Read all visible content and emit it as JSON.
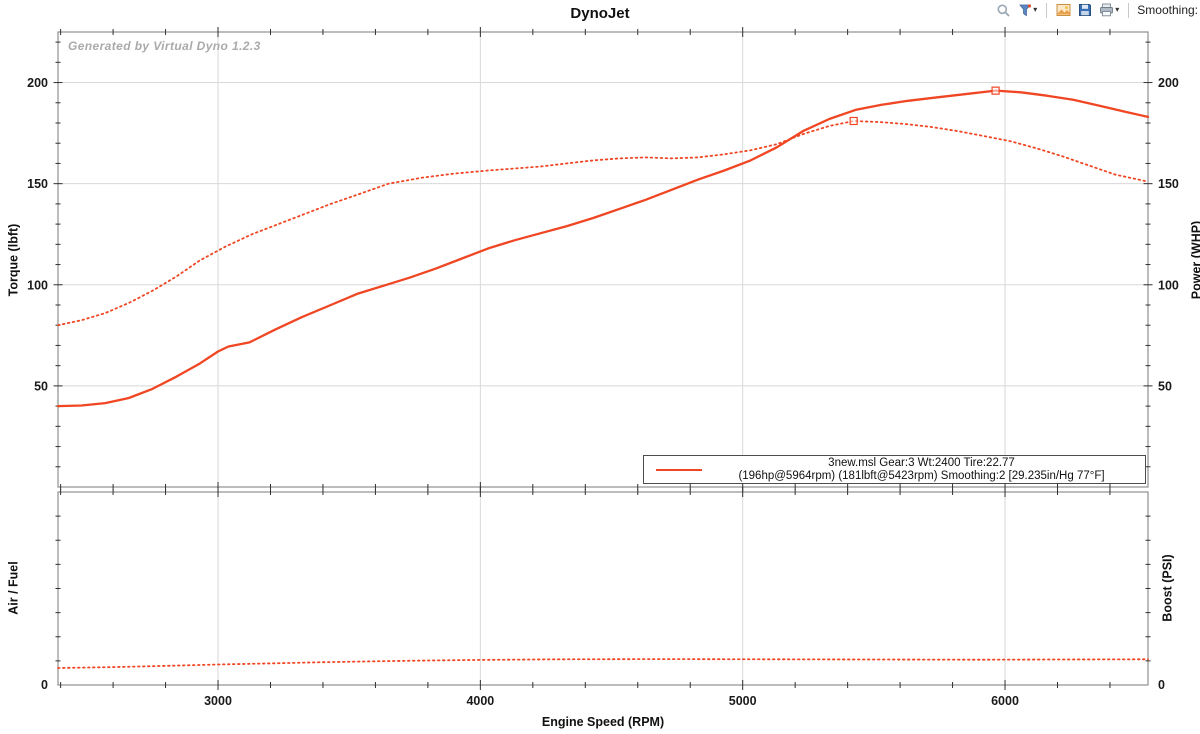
{
  "window": {
    "title": "DynoJet"
  },
  "toolbar": {
    "smoothing_label": "Smoothing:",
    "buttons": [
      "zoom",
      "filter-options",
      "copy-image",
      "save",
      "print"
    ]
  },
  "watermark": "Generated by Virtual Dyno 1.2.3",
  "axes": {
    "top_left_label": "Torque (lbft)",
    "top_right_label": "Power (WHP)",
    "bottom_left_label": "Air / Fuel",
    "bottom_right_label": "Boost (PSI)",
    "x_label": "Engine Speed (RPM)",
    "bottom_zero_label": "0"
  },
  "legend": {
    "line1": "3new.msl Gear:3 Wt:2400 Tire:22.77",
    "line2": "(196hp@5964rpm) (181lbft@5423rpm) Smoothing:2 [29.235in/Hg 77°F]"
  },
  "colors": {
    "curve": "#f04623",
    "grid": "#d8d8d8",
    "border": "#8f8f8f",
    "tick": "#2f2f2f",
    "text": "#1a1a1a",
    "watermark": "#aaaaaa",
    "legend_border": "#4d4d4d"
  },
  "chart_data": [
    {
      "type": "line",
      "panel": "main",
      "title": "DynoJet",
      "xlabel": "Engine Speed (RPM)",
      "ylabel_left": "Torque (lbft)",
      "ylabel_right": "Power (WHP)",
      "xlim": [
        2390,
        6545
      ],
      "ylim": [
        0,
        225
      ],
      "xticks": [
        3000,
        4000,
        5000,
        6000
      ],
      "yticks": [
        50,
        100,
        150,
        200
      ],
      "x_minor_step": 200,
      "y_minor_step": 10,
      "grid": true,
      "legend_position": "bottom-right",
      "series": [
        {
          "name": "power_whp",
          "style": "solid",
          "peak": {
            "label": "196hp@5964rpm",
            "x": 5964,
            "y": 196
          },
          "points": [
            [
              2390,
              40
            ],
            [
              2480,
              40.3
            ],
            [
              2570,
              41.5
            ],
            [
              2660,
              44
            ],
            [
              2750,
              48.5
            ],
            [
              2840,
              54.5
            ],
            [
              2930,
              61
            ],
            [
              3000,
              67
            ],
            [
              3040,
              69.5
            ],
            [
              3120,
              71.5
            ],
            [
              3220,
              78
            ],
            [
              3320,
              84
            ],
            [
              3430,
              90
            ],
            [
              3530,
              95.5
            ],
            [
              3630,
              99.5
            ],
            [
              3730,
              103.5
            ],
            [
              3830,
              108
            ],
            [
              3930,
              113
            ],
            [
              4030,
              118
            ],
            [
              4130,
              122
            ],
            [
              4230,
              125.5
            ],
            [
              4330,
              129
            ],
            [
              4430,
              133
            ],
            [
              4530,
              137.5
            ],
            [
              4630,
              142
            ],
            [
              4730,
              147
            ],
            [
              4830,
              152
            ],
            [
              4930,
              156.5
            ],
            [
              5030,
              161.5
            ],
            [
              5130,
              168
            ],
            [
              5230,
              176
            ],
            [
              5330,
              182
            ],
            [
              5430,
              186.5
            ],
            [
              5530,
              189
            ],
            [
              5630,
              191
            ],
            [
              5730,
              192.5
            ],
            [
              5830,
              194
            ],
            [
              5964,
              196
            ],
            [
              6060,
              195.2
            ],
            [
              6160,
              193.5
            ],
            [
              6260,
              191.5
            ],
            [
              6360,
              188.5
            ],
            [
              6460,
              185.5
            ],
            [
              6545,
              183
            ]
          ]
        },
        {
          "name": "torque_lbft",
          "style": "dotted",
          "peak": {
            "label": "181lbft@5423rpm",
            "x": 5423,
            "y": 181
          },
          "points": [
            [
              2390,
              80
            ],
            [
              2480,
              82.5
            ],
            [
              2570,
              86
            ],
            [
              2660,
              91
            ],
            [
              2750,
              97
            ],
            [
              2840,
              104
            ],
            [
              2930,
              112
            ],
            [
              3030,
              119
            ],
            [
              3130,
              125
            ],
            [
              3230,
              130
            ],
            [
              3330,
              135
            ],
            [
              3430,
              140
            ],
            [
              3530,
              144.5
            ],
            [
              3650,
              150
            ],
            [
              3780,
              153
            ],
            [
              3900,
              155
            ],
            [
              4030,
              156.5
            ],
            [
              4130,
              157.5
            ],
            [
              4230,
              158.5
            ],
            [
              4330,
              160
            ],
            [
              4430,
              161.5
            ],
            [
              4530,
              162.5
            ],
            [
              4630,
              163
            ],
            [
              4730,
              162.5
            ],
            [
              4830,
              163
            ],
            [
              4930,
              164.5
            ],
            [
              5030,
              166.5
            ],
            [
              5130,
              169.5
            ],
            [
              5230,
              174.5
            ],
            [
              5330,
              178.5
            ],
            [
              5423,
              181
            ],
            [
              5520,
              180.5
            ],
            [
              5620,
              179.5
            ],
            [
              5720,
              178
            ],
            [
              5820,
              176
            ],
            [
              5920,
              173.5
            ],
            [
              6020,
              171
            ],
            [
              6120,
              167.5
            ],
            [
              6220,
              163.5
            ],
            [
              6320,
              159
            ],
            [
              6420,
              154.5
            ],
            [
              6545,
              151
            ]
          ]
        }
      ]
    },
    {
      "type": "line",
      "panel": "secondary",
      "ylabel_left": "Air / Fuel",
      "ylabel_right": "Boost (PSI)",
      "xlim": [
        2390,
        6545
      ],
      "ylim": [
        0,
        1
      ],
      "xticks": [
        3000,
        4000,
        5000,
        6000
      ],
      "yticks": [
        0
      ],
      "x_minor_step": 200,
      "y_minor_divisions": 8,
      "grid": true,
      "note": "Vertical scale unlabeled except 0; trace values normalized to panel height",
      "series": [
        {
          "name": "boost_trace",
          "style": "dotted",
          "points": [
            [
              2390,
              0.088
            ],
            [
              2600,
              0.093
            ],
            [
              2800,
              0.099
            ],
            [
              3000,
              0.106
            ],
            [
              3200,
              0.112
            ],
            [
              3400,
              0.118
            ],
            [
              3600,
              0.123
            ],
            [
              3800,
              0.127
            ],
            [
              4000,
              0.13
            ],
            [
              4300,
              0.133
            ],
            [
              4700,
              0.134
            ],
            [
              5100,
              0.133
            ],
            [
              5500,
              0.132
            ],
            [
              5900,
              0.131
            ],
            [
              6200,
              0.132
            ],
            [
              6545,
              0.133
            ]
          ]
        }
      ]
    }
  ]
}
